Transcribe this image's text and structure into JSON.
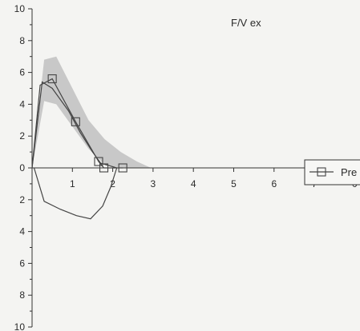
{
  "chart_data": {
    "type": "line",
    "title": "F/V ex",
    "xlabel": "",
    "ylabel": "",
    "xlim": [
      0,
      8
    ],
    "ylim": [
      -10,
      10
    ],
    "y_tick_values": [
      10,
      8,
      6,
      4,
      2,
      0,
      -2,
      -4,
      -6,
      -8,
      -10
    ],
    "y_tick_labels": [
      "10",
      "8",
      "6",
      "4",
      "2",
      "0",
      "2",
      "4",
      "6",
      "8",
      "10"
    ],
    "x_tick_values": [
      1,
      2,
      3,
      4,
      5,
      6,
      7,
      8
    ],
    "x_tick_labels": [
      "1",
      "2",
      "3",
      "4",
      "5",
      "6",
      "7",
      "0"
    ],
    "grid": false,
    "legend_position": "right",
    "legend": [
      {
        "name": "Pre",
        "marker": "square"
      }
    ],
    "series": [
      {
        "name": "Pre",
        "marker": "square",
        "x": [
          0,
          0.2,
          0.5,
          1.08,
          1.65,
          1.78,
          2.25
        ],
        "y": [
          0,
          5.2,
          5.6,
          2.9,
          0.4,
          0.0,
          0.0
        ],
        "markers_at": [
          2,
          3,
          4,
          5,
          6
        ]
      },
      {
        "name": "",
        "x": [
          0,
          0.25,
          0.5,
          0.9,
          1.2,
          1.5,
          1.7,
          2.1
        ],
        "y": [
          0,
          5.4,
          5.0,
          3.6,
          2.2,
          1.0,
          0.3,
          0.0
        ]
      }
    ],
    "band": {
      "x": [
        0,
        0.3,
        0.6,
        1.0,
        1.4,
        1.8,
        2.2,
        2.6,
        2.95
      ],
      "upper": [
        0,
        6.8,
        7.0,
        5.0,
        3.0,
        1.8,
        1.0,
        0.4,
        0.0
      ],
      "lower": [
        0,
        4.2,
        4.0,
        2.6,
        1.2,
        0.2,
        0.0,
        0.0,
        0.0
      ]
    },
    "inspiratory_loop": {
      "x": [
        0.05,
        0.3,
        0.7,
        1.1,
        1.45,
        1.75,
        1.95,
        2.1
      ],
      "y": [
        0,
        -2.1,
        -2.6,
        -3.0,
        -3.2,
        -2.4,
        -1.2,
        0
      ]
    }
  },
  "colors": {
    "band": "#bdbdbd",
    "line": "#444444",
    "axis": "#333333"
  }
}
